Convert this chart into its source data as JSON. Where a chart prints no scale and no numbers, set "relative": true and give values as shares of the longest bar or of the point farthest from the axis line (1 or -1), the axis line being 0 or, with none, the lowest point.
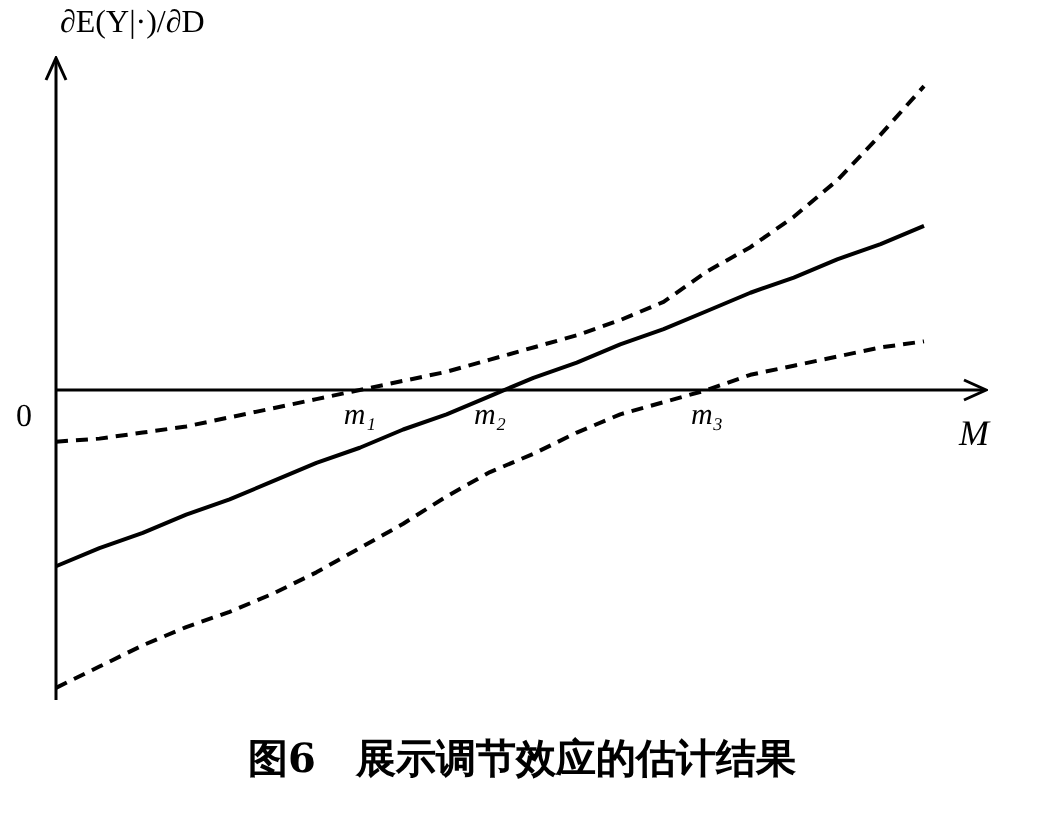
{
  "chart_data": {
    "type": "line",
    "relative": true,
    "title": "图6　展示调节效应的估计结果",
    "ylabel": "∂E(Y|·)/∂D",
    "xlabel": "M",
    "annotations": [
      "0"
    ],
    "legend": false,
    "grid": false,
    "marker": "none",
    "categories": [
      null,
      null,
      null,
      null,
      null,
      null,
      null,
      "m₁",
      null,
      null,
      "m₂",
      null,
      null,
      null,
      null,
      "m₃",
      null,
      null,
      null,
      null,
      null
    ],
    "series": [
      {
        "color": "#000000",
        "line_style": "solid",
        "values": [
          -0.58,
          -0.52,
          -0.47,
          -0.41,
          -0.36,
          -0.3,
          -0.24,
          -0.19,
          -0.13,
          -0.08,
          -0.02,
          0.04,
          0.09,
          0.15,
          0.2,
          0.26,
          0.32,
          0.37,
          0.43,
          0.48,
          0.54
        ]
      },
      {
        "color": "#000000",
        "line_style": "dashed",
        "values": [
          -0.17,
          -0.16,
          -0.14,
          -0.12,
          -0.09,
          -0.06,
          -0.03,
          0,
          0.03,
          0.06,
          0.1,
          0.14,
          0.18,
          0.23,
          0.29,
          0.39,
          0.47,
          0.57,
          0.69,
          0.84,
          1
        ]
      },
      {
        "color": "#000000",
        "line_style": "dashed",
        "values": [
          -0.98,
          -0.91,
          -0.84,
          -0.78,
          -0.73,
          -0.67,
          -0.6,
          -0.52,
          -0.44,
          -0.35,
          -0.27,
          -0.21,
          -0.14,
          -0.08,
          -0.04,
          0,
          0.05,
          0.08,
          0.11,
          0.14,
          0.16
        ]
      }
    ]
  }
}
